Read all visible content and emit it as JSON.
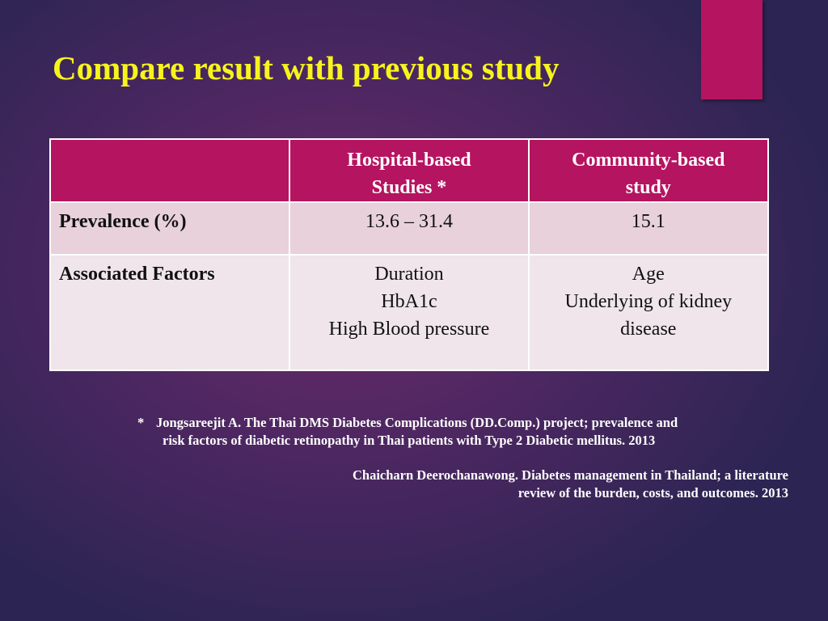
{
  "title": "Compare result with previous study",
  "table": {
    "header": [
      "",
      [
        "Hospital-based",
        "Studies *"
      ],
      [
        "Community-based",
        "study"
      ]
    ],
    "rows": [
      [
        "Prevalence (%)",
        [
          "13.6 – 31.4"
        ],
        [
          "15.1"
        ]
      ],
      [
        "Associated Factors",
        [
          "Duration",
          "HbA1c",
          "High Blood pressure"
        ],
        [
          "Age",
          "Underlying of kidney",
          "disease"
        ]
      ]
    ]
  },
  "footnotes": [
    {
      "marker": "*",
      "lines": [
        "Jongsareejit A. The Thai DMS Diabetes Complications (DD.Comp.) project; prevalence and",
        "risk factors of diabetic retinopathy in Thai patients with Type 2 Diabetic mellitus. 2013"
      ]
    },
    {
      "lines": [
        "Chaicharn Deerochanawong. Diabetes management in Thailand; a literature",
        "review of the burden, costs, and outcomes. 2013"
      ]
    }
  ]
}
